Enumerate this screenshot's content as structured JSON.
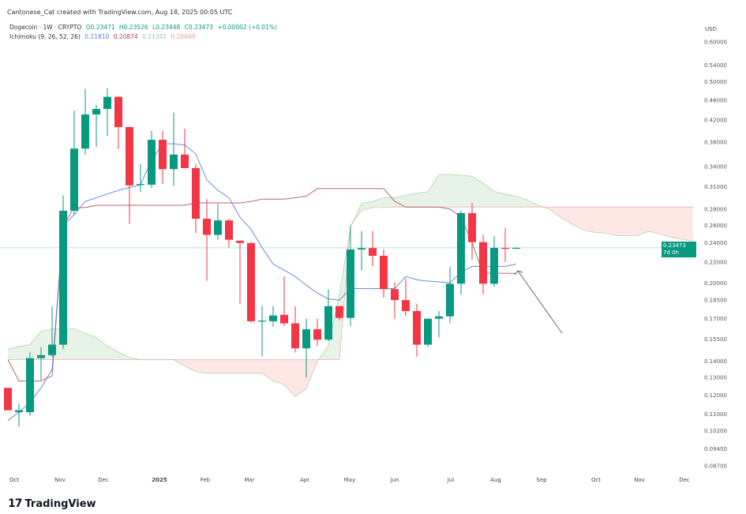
{
  "header": {
    "credit": "Cantonese_Cat created with TradingView.com, Aug 18, 2025 00:05 UTC",
    "symbol": "Dogecoin · 1W · CRYPTO",
    "open": "O0.23471",
    "high": "H0.23526",
    "low": "L0.23448",
    "close": "C0.23473",
    "change": "+0.00002 (+0.01%)",
    "indicator": "Ichimoku (9, 26, 52, 26)",
    "ind_values": [
      "0.21810",
      "0.20874",
      "0.21342",
      "0.28669"
    ]
  },
  "price_axis": {
    "currency": "USD",
    "current_price": "0.23473",
    "countdown": "7d 0h"
  },
  "brand": {
    "logo_text": "17",
    "name": "TradingView"
  },
  "colors": {
    "up": "#089981",
    "down": "#f23645",
    "tenkan": "#5b7fd6",
    "kijun": "#b5555c",
    "cloud_up": "#43a047",
    "cloud_down": "#f44336",
    "badge": "#089981"
  },
  "chart_data": {
    "type": "candlestick",
    "title": "",
    "scale": "log",
    "ylim": [
      0.085,
      0.62
    ],
    "y_ticks": [
      "0.60000",
      "0.54000",
      "0.50000",
      "0.46000",
      "0.42000",
      "0.38000",
      "0.34000",
      "0.31000",
      "0.28000",
      "0.26000",
      "0.24000",
      "0.22000",
      "0.20000",
      "0.18500",
      "0.17000",
      "0.15500",
      "0.14000",
      "0.13000",
      "0.12000",
      "0.11000",
      "0.10200",
      "0.09400",
      "0.08700"
    ],
    "x_ticks": [
      "Oct",
      "Nov",
      "Dec",
      "2025",
      "Feb",
      "Mar",
      "Apr",
      "May",
      "Jun",
      "Jul",
      "Aug",
      "Sep",
      "Oct",
      "Nov",
      "Dec"
    ],
    "candles_columns": [
      "week",
      "open",
      "high",
      "low",
      "close"
    ],
    "candles": [
      [
        "2024-09-30",
        0.124,
        0.124,
        0.112,
        0.112
      ],
      [
        "2024-10-07",
        0.111,
        0.1153,
        0.104,
        0.112
      ],
      [
        "2024-10-14",
        0.111,
        0.1457,
        0.1092,
        0.142
      ],
      [
        "2024-10-21",
        0.142,
        0.1494,
        0.1286,
        0.144
      ],
      [
        "2024-10-28",
        0.144,
        0.1798,
        0.143,
        0.151
      ],
      [
        "2024-11-04",
        0.151,
        0.298,
        0.148,
        0.278
      ],
      [
        "2024-11-11",
        0.278,
        0.4385,
        0.273,
        0.369
      ],
      [
        "2024-11-18",
        0.369,
        0.484,
        0.359,
        0.431
      ],
      [
        "2024-11-25",
        0.431,
        0.45,
        0.372,
        0.442
      ],
      [
        "2024-12-02",
        0.442,
        0.486,
        0.391,
        0.467
      ],
      [
        "2024-12-09",
        0.467,
        0.468,
        0.368,
        0.407
      ],
      [
        "2024-12-16",
        0.407,
        0.407,
        0.262,
        0.312
      ],
      [
        "2024-12-23",
        0.313,
        0.344,
        0.303,
        0.314
      ],
      [
        "2024-12-30",
        0.313,
        0.4,
        0.308,
        0.384
      ],
      [
        "2025-01-06",
        0.384,
        0.4,
        0.3145,
        0.336
      ],
      [
        "2025-01-13",
        0.336,
        0.435,
        0.311,
        0.359
      ],
      [
        "2025-01-20",
        0.359,
        0.404,
        0.3375,
        0.3375
      ],
      [
        "2025-01-27",
        0.3375,
        0.344,
        0.251,
        0.268
      ],
      [
        "2025-02-03",
        0.268,
        0.293,
        0.202,
        0.249
      ],
      [
        "2025-02-10",
        0.249,
        0.287,
        0.2435,
        0.266
      ],
      [
        "2025-02-17",
        0.266,
        0.268,
        0.235,
        0.2435
      ],
      [
        "2025-02-24",
        0.2425,
        0.2425,
        0.182,
        0.24
      ],
      [
        "2025-03-03",
        0.24,
        0.24,
        0.167,
        0.168
      ],
      [
        "2025-03-10",
        0.168,
        0.18,
        0.143,
        0.1685
      ],
      [
        "2025-03-17",
        0.168,
        0.18,
        0.164,
        0.1725
      ],
      [
        "2025-03-24",
        0.173,
        0.206,
        0.1645,
        0.1664
      ],
      [
        "2025-03-31",
        0.1664,
        0.18,
        0.1457,
        0.1485
      ],
      [
        "2025-04-07",
        0.1485,
        0.17,
        0.13,
        0.162
      ],
      [
        "2025-04-14",
        0.162,
        0.17,
        0.15,
        0.1545
      ],
      [
        "2025-04-21",
        0.1545,
        0.194,
        0.1533,
        0.18
      ],
      [
        "2025-04-28",
        0.18,
        0.18,
        0.1688,
        0.1706
      ],
      [
        "2025-05-05",
        0.1706,
        0.259,
        0.1645,
        0.233
      ],
      [
        "2025-05-12",
        0.233,
        0.2535,
        0.2118,
        0.2345
      ],
      [
        "2025-05-19",
        0.2345,
        0.2535,
        0.2157,
        0.2264
      ],
      [
        "2025-05-26",
        0.2264,
        0.233,
        0.187,
        0.1945
      ],
      [
        "2025-06-02",
        0.1945,
        0.2007,
        0.17,
        0.185
      ],
      [
        "2025-06-09",
        0.185,
        0.2043,
        0.1718,
        0.176
      ],
      [
        "2025-06-16",
        0.176,
        0.182,
        0.143,
        0.151
      ],
      [
        "2025-06-23",
        0.151,
        0.17,
        0.1494,
        0.17
      ],
      [
        "2025-06-30",
        0.17,
        0.176,
        0.1561,
        0.1718
      ],
      [
        "2025-07-07",
        0.1718,
        0.2153,
        0.1664,
        0.1993
      ],
      [
        "2025-07-14",
        0.1993,
        0.278,
        0.1897,
        0.275
      ],
      [
        "2025-07-21",
        0.275,
        0.288,
        0.2224,
        0.2409
      ],
      [
        "2025-07-28",
        0.2409,
        0.249,
        0.1897,
        0.1993
      ],
      [
        "2025-08-04",
        0.1993,
        0.2474,
        0.1965,
        0.2347
      ],
      [
        "2025-08-11",
        0.2347,
        0.257,
        0.22,
        0.2345
      ],
      [
        "2025-08-18",
        0.23471,
        0.23526,
        0.23448,
        0.23473
      ]
    ],
    "ichimoku": {
      "tenkan": [
        0.107,
        0.111,
        0.116,
        0.124,
        0.135,
        0.26,
        0.273,
        0.29,
        0.295,
        0.3,
        0.305,
        0.309,
        0.313,
        0.35,
        0.377,
        0.377,
        0.375,
        0.36,
        0.32,
        0.305,
        0.295,
        0.27,
        0.2554,
        0.235,
        0.218,
        0.212,
        0.206,
        0.198,
        0.191,
        0.186,
        0.185,
        0.195,
        0.195,
        0.195,
        0.195,
        0.195,
        0.206,
        0.203,
        0.2017,
        0.201,
        0.2,
        0.21,
        0.2157,
        0.2157,
        0.2157,
        0.2157,
        0.2181
      ],
      "kijun": [
        0.141,
        0.128,
        0.128,
        0.128,
        0.131,
        0.26,
        0.282,
        0.282,
        0.285,
        0.285,
        0.285,
        0.285,
        0.285,
        0.285,
        0.285,
        0.285,
        0.285,
        0.288,
        0.288,
        0.288,
        0.288,
        0.288,
        0.29,
        0.293,
        0.293,
        0.293,
        0.295,
        0.297,
        0.3075,
        0.3075,
        0.3075,
        0.3075,
        0.3075,
        0.3075,
        0.3075,
        0.29,
        0.2827,
        0.2827,
        0.2827,
        0.2827,
        0.28,
        0.27,
        0.24,
        0.209,
        0.209,
        0.209,
        0.20874
      ],
      "senkou_a": [
        0.148,
        0.1497,
        0.151,
        0.1605,
        0.1622,
        0.1622,
        0.1622,
        0.159,
        0.156,
        0.15,
        0.146,
        0.1425,
        0.141,
        0.141,
        0.141,
        0.141,
        0.137,
        0.1335,
        0.1326,
        0.1326,
        0.1326,
        0.1326,
        0.1326,
        0.1326,
        0.128,
        0.1259,
        0.1191,
        0.1235,
        0.14,
        0.15,
        0.19,
        0.258,
        0.2875,
        0.29,
        0.295,
        0.295,
        0.298,
        0.301,
        0.303,
        0.328,
        0.328,
        0.327,
        0.325,
        0.315,
        0.3035,
        0.3,
        0.297,
        0.292,
        0.285,
        0.28,
        0.27,
        0.262,
        0.255,
        0.252,
        0.251,
        0.2483,
        0.248,
        0.2483,
        0.253,
        0.25,
        0.2465,
        0.244,
        0.2421
      ],
      "senkou_b": [
        0.141,
        0.141,
        0.141,
        0.141,
        0.141,
        0.141,
        0.141,
        0.141,
        0.141,
        0.141,
        0.141,
        0.141,
        0.141,
        0.141,
        0.141,
        0.141,
        0.141,
        0.141,
        0.141,
        0.141,
        0.141,
        0.141,
        0.141,
        0.141,
        0.141,
        0.141,
        0.141,
        0.141,
        0.141,
        0.141,
        0.141,
        0.26,
        0.278,
        0.282,
        0.282,
        0.2827,
        0.2827,
        0.2827,
        0.2827,
        0.2827,
        0.2827,
        0.2827,
        0.2827,
        0.2827,
        0.2827,
        0.2827,
        0.2827,
        0.2827,
        0.2827,
        0.2827,
        0.2827,
        0.2827,
        0.2827,
        0.2827,
        0.2827,
        0.2827,
        0.2827,
        0.2827,
        0.2827,
        0.2827,
        0.2827,
        0.2827,
        0.2827
      ]
    }
  }
}
